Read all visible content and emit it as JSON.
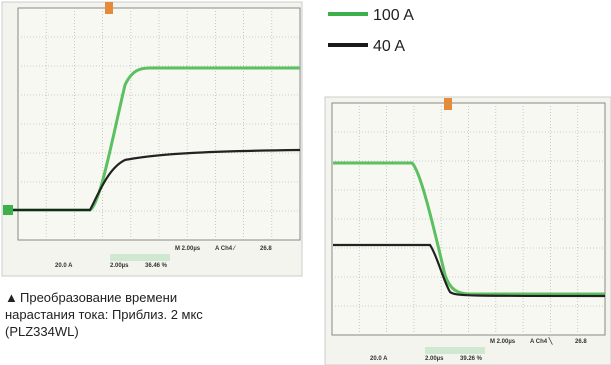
{
  "legend": [
    {
      "label": "100 A",
      "color": "#3cb04a"
    },
    {
      "label": "40 A",
      "color": "#1a1a1a"
    }
  ],
  "caption": {
    "marker": "▲",
    "lines": [
      "Преобразование времени",
      "нарастания тока: Приблиз. 2 мкс",
      "(PLZ334WL)"
    ]
  },
  "scopes": [
    {
      "timebase": "M 2.00µs",
      "trigger": "A  Ch4  ⁄",
      "level": "26.8",
      "scale": "20.0 A",
      "time": "2.00µs",
      "readout": "36.46 %"
    },
    {
      "timebase": "M 2.00µs",
      "trigger": "A  Ch4  ╲",
      "level": "26.8",
      "scale": "20.0 A",
      "time": "2.00µs",
      "readout": "39.26 %"
    }
  ]
}
